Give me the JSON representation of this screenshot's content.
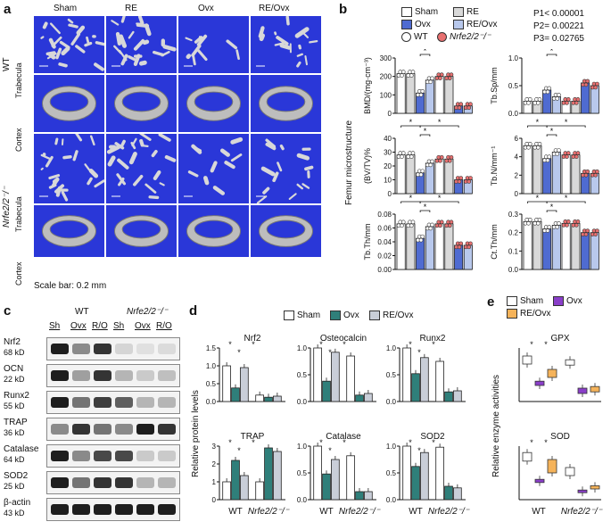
{
  "panels": {
    "a": "a",
    "b": "b",
    "c": "c",
    "d": "d",
    "e": "e"
  },
  "panel_a": {
    "columns": [
      "Sham",
      "RE",
      "Ovx",
      "RE/Ovx"
    ],
    "genotypes": [
      "WT",
      "Nrfe2/2⁻/⁻"
    ],
    "rows": [
      "Trabecula",
      "Cortex",
      "Trabecula",
      "Cortex"
    ],
    "scale_bar": "Scale bar: 0.2 mm"
  },
  "panel_b": {
    "legend": [
      "Sham",
      "RE",
      "Ovx",
      "RE/Ovx",
      "WT",
      "Nrfe2/2⁻/⁻"
    ],
    "pvalues": [
      "P1< 0.00001",
      "P2= 0.00221",
      "P3= 0.02765"
    ],
    "side_label": "Femur microstructure",
    "colors": {
      "sham": "#ffffff",
      "re": "#d9d9d9",
      "ovx": "#4f6bd1",
      "reovx": "#b8c8ec",
      "wt_dot": "#ffffff",
      "ko_dot": "#e87070"
    },
    "star": "*"
  },
  "chart_data": [
    {
      "type": "bar",
      "panel": "b",
      "ylabel": "BMD/(mg·cm⁻³)",
      "ylim": [
        0,
        300
      ],
      "yticks": [
        "0",
        "100",
        "200",
        "300"
      ],
      "series": [
        {
          "name": "WT",
          "values": [
            215,
            215,
            110,
            180
          ]
        },
        {
          "name": "Nrfe2/2⁻/⁻",
          "values": [
            200,
            200,
            40,
            40
          ]
        }
      ]
    },
    {
      "type": "bar",
      "panel": "b",
      "ylabel": "Tb.Sp/mm",
      "ylim": [
        0,
        1.0
      ],
      "yticks": [
        "0.0",
        "0.5",
        "1.0"
      ],
      "series": [
        {
          "name": "WT",
          "values": [
            0.22,
            0.22,
            0.42,
            0.3
          ]
        },
        {
          "name": "Nrfe2/2⁻/⁻",
          "values": [
            0.22,
            0.22,
            0.55,
            0.5
          ]
        }
      ]
    },
    {
      "type": "bar",
      "panel": "b",
      "ylabel": "(BV/TV)%",
      "ylim": [
        0,
        40
      ],
      "yticks": [
        "0",
        "10",
        "20",
        "30",
        "40"
      ],
      "series": [
        {
          "name": "WT",
          "values": [
            28,
            28,
            15,
            22
          ]
        },
        {
          "name": "Nrfe2/2⁻/⁻",
          "values": [
            25,
            25,
            10,
            10
          ]
        }
      ]
    },
    {
      "type": "bar",
      "panel": "b",
      "ylabel": "Tb.N/mm⁻¹",
      "ylim": [
        0,
        6
      ],
      "yticks": [
        "0",
        "2",
        "4",
        "6"
      ],
      "series": [
        {
          "name": "WT",
          "values": [
            5.2,
            5.2,
            3.8,
            4.5
          ]
        },
        {
          "name": "Nrfe2/2⁻/⁻",
          "values": [
            4.2,
            4.2,
            2.2,
            2.2
          ]
        }
      ]
    },
    {
      "type": "bar",
      "panel": "b",
      "ylabel": "Tb.Th/mm",
      "ylim": [
        0,
        0.08
      ],
      "yticks": [
        "0.00",
        "0.02",
        "0.04",
        "0.06",
        "0.08"
      ],
      "series": [
        {
          "name": "WT",
          "values": [
            0.066,
            0.066,
            0.045,
            0.062
          ]
        },
        {
          "name": "Nrfe2/2⁻/⁻",
          "values": [
            0.066,
            0.066,
            0.035,
            0.035
          ]
        }
      ]
    },
    {
      "type": "bar",
      "panel": "b",
      "ylabel": "Ct.Th/mm",
      "ylim": [
        0,
        0.3
      ],
      "yticks": [
        "0.0",
        "0.1",
        "0.2",
        "0.3"
      ],
      "series": [
        {
          "name": "WT",
          "values": [
            0.26,
            0.26,
            0.22,
            0.24
          ]
        },
        {
          "name": "Nrfe2/2⁻/⁻",
          "values": [
            0.25,
            0.25,
            0.2,
            0.2
          ]
        }
      ]
    },
    {
      "type": "bar",
      "panel": "d",
      "title": "Nrf2",
      "ylim": [
        0,
        1.5
      ],
      "yticks": [
        "0.0",
        "0.5",
        "1.0",
        "1.5"
      ],
      "series": [
        {
          "name": "Sham",
          "values": [
            1.0,
            0.18
          ]
        },
        {
          "name": "Ovx",
          "values": [
            0.38,
            0.12
          ]
        },
        {
          "name": "RE/Ovx",
          "values": [
            0.95,
            0.15
          ]
        }
      ]
    },
    {
      "type": "bar",
      "panel": "d",
      "title": "Osteocalcin",
      "ylim": [
        0,
        1.0
      ],
      "yticks": [
        "0.0",
        "0.5",
        "1.0"
      ],
      "series": [
        {
          "name": "Sham",
          "values": [
            1.0,
            0.85
          ]
        },
        {
          "name": "Ovx",
          "values": [
            0.38,
            0.12
          ]
        },
        {
          "name": "RE/Ovx",
          "values": [
            0.92,
            0.15
          ]
        }
      ]
    },
    {
      "type": "bar",
      "panel": "d",
      "title": "Runx2",
      "ylim": [
        0,
        1.0
      ],
      "yticks": [
        "0.0",
        "0.5",
        "1.0"
      ],
      "series": [
        {
          "name": "Sham",
          "values": [
            1.0,
            0.75
          ]
        },
        {
          "name": "Ovx",
          "values": [
            0.52,
            0.18
          ]
        },
        {
          "name": "RE/Ovx",
          "values": [
            0.82,
            0.2
          ]
        }
      ]
    },
    {
      "type": "bar",
      "panel": "d",
      "title": "TRAP",
      "ylim": [
        0,
        3
      ],
      "yticks": [
        "0",
        "1",
        "2",
        "3"
      ],
      "series": [
        {
          "name": "Sham",
          "values": [
            1.0,
            1.0
          ]
        },
        {
          "name": "Ovx",
          "values": [
            2.2,
            2.9
          ]
        },
        {
          "name": "RE/Ovx",
          "values": [
            1.35,
            2.7
          ]
        }
      ]
    },
    {
      "type": "bar",
      "panel": "d",
      "title": "Catalase",
      "ylim": [
        0,
        1.0
      ],
      "yticks": [
        "0.0",
        "0.5",
        "1.0"
      ],
      "series": [
        {
          "name": "Sham",
          "values": [
            1.0,
            0.82
          ]
        },
        {
          "name": "Ovx",
          "values": [
            0.48,
            0.15
          ]
        },
        {
          "name": "RE/Ovx",
          "values": [
            0.75,
            0.15
          ]
        }
      ]
    },
    {
      "type": "bar",
      "panel": "d",
      "title": "SOD2",
      "ylim": [
        0,
        1.0
      ],
      "yticks": [
        "0.0",
        "0.5",
        "1.0"
      ],
      "series": [
        {
          "name": "Sham",
          "values": [
            1.0,
            0.98
          ]
        },
        {
          "name": "Ovx",
          "values": [
            0.62,
            0.25
          ]
        },
        {
          "name": "RE/Ovx",
          "values": [
            0.88,
            0.22
          ]
        }
      ]
    }
  ],
  "panel_c": {
    "groups": [
      "WT",
      "Nrfe2/2⁻/⁻"
    ],
    "lanes": [
      "Sh",
      "Ovx",
      "R/O",
      "Sh",
      "Ovx",
      "R/O"
    ],
    "proteins": [
      {
        "name": "Nrf2",
        "size": "68 kD"
      },
      {
        "name": "OCN",
        "size": "22 kD"
      },
      {
        "name": "Runx2",
        "size": "55 kD"
      },
      {
        "name": "TRAP",
        "size": "36 kD"
      },
      {
        "name": "Catalase",
        "size": "64 kD"
      },
      {
        "name": "SOD2",
        "size": "25 kD"
      },
      {
        "name": "β-actin",
        "size": "43 kD"
      }
    ]
  },
  "panel_d": {
    "legend": [
      "Sham",
      "Ovx",
      "RE/Ovx"
    ],
    "ylabel": "Relative protein levels",
    "xticks": [
      "WT",
      "Nrfe2/2⁻/⁻"
    ],
    "colors": {
      "sham": "#ffffff",
      "ovx": "#2f7f7a",
      "reovx": "#c9ced8"
    }
  },
  "panel_e": {
    "legend": [
      "Sham",
      "Ovx",
      "RE/Ovx"
    ],
    "titles": [
      "GPX",
      "SOD"
    ],
    "ylabel": "Relative enzyme activities",
    "xticks": [
      "WT",
      "Nrfe2/2⁻/⁻"
    ],
    "colors": {
      "sham": "#ffffff",
      "ovx": "#8a3fc9",
      "reovx": "#f5b35a"
    }
  }
}
